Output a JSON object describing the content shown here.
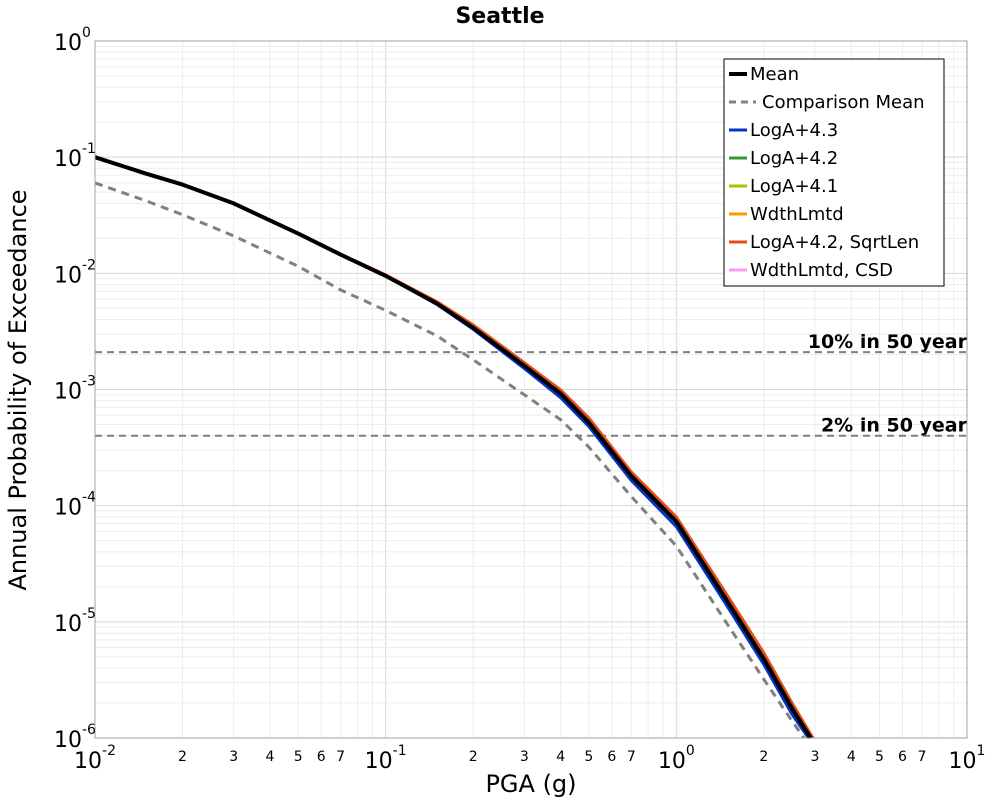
{
  "chart_data": {
    "type": "line",
    "title": "Seattle",
    "xlabel": "PGA (g)",
    "ylabel": "Annual Probability of Exceedance",
    "x_scale": "log",
    "y_scale": "log",
    "xlim": [
      0.01,
      10
    ],
    "ylim": [
      1e-06,
      1
    ],
    "grid": true,
    "legend_position": "top-right",
    "x_major_ticks": [
      {
        "value": 0.01,
        "base": "10",
        "exp": "-2"
      },
      {
        "value": 0.1,
        "base": "10",
        "exp": "-1"
      },
      {
        "value": 1,
        "base": "10",
        "exp": "0"
      },
      {
        "value": 10,
        "base": "10",
        "exp": "1"
      }
    ],
    "x_minor_ticks": [
      {
        "value": 0.02,
        "label": "2"
      },
      {
        "value": 0.03,
        "label": "3"
      },
      {
        "value": 0.04,
        "label": "4"
      },
      {
        "value": 0.05,
        "label": "5"
      },
      {
        "value": 0.06,
        "label": "6"
      },
      {
        "value": 0.07,
        "label": "7"
      },
      {
        "value": 0.2,
        "label": "2"
      },
      {
        "value": 0.3,
        "label": "3"
      },
      {
        "value": 0.4,
        "label": "4"
      },
      {
        "value": 0.5,
        "label": "5"
      },
      {
        "value": 0.6,
        "label": "6"
      },
      {
        "value": 0.7,
        "label": "7"
      },
      {
        "value": 2,
        "label": "2"
      },
      {
        "value": 3,
        "label": "3"
      },
      {
        "value": 4,
        "label": "4"
      },
      {
        "value": 5,
        "label": "5"
      },
      {
        "value": 6,
        "label": "6"
      },
      {
        "value": 7,
        "label": "7"
      }
    ],
    "y_major_ticks": [
      {
        "value": 1,
        "base": "10",
        "exp": "0"
      },
      {
        "value": 0.1,
        "base": "10",
        "exp": "-1"
      },
      {
        "value": 0.01,
        "base": "10",
        "exp": "-2"
      },
      {
        "value": 0.001,
        "base": "10",
        "exp": "-3"
      },
      {
        "value": 0.0001,
        "base": "10",
        "exp": "-4"
      },
      {
        "value": 1e-05,
        "base": "10",
        "exp": "-5"
      },
      {
        "value": 1e-06,
        "base": "10",
        "exp": "-6"
      }
    ],
    "reference_lines": [
      {
        "label": "10% in 50 year",
        "y": 0.0021,
        "color": "#808080"
      },
      {
        "label": "2% in 50 year",
        "y": 0.0004,
        "color": "#808080"
      }
    ],
    "series": [
      {
        "name": "Mean",
        "color": "#000000",
        "dash": "solid",
        "x": [
          0.01,
          0.015,
          0.02,
          0.03,
          0.05,
          0.07,
          0.1,
          0.15,
          0.2,
          0.3,
          0.4,
          0.5,
          0.7,
          1.0,
          1.5,
          2.0,
          2.5,
          2.9
        ],
        "y": [
          0.1,
          0.072,
          0.058,
          0.04,
          0.022,
          0.0145,
          0.0095,
          0.0055,
          0.0034,
          0.0016,
          0.00092,
          0.00052,
          0.00018,
          7.3e-05,
          1.5e-05,
          4.8e-06,
          1.8e-06,
          1e-06
        ]
      },
      {
        "name": "Comparison Mean",
        "color": "#808080",
        "dash": "dashed",
        "x": [
          0.01,
          0.015,
          0.02,
          0.03,
          0.05,
          0.07,
          0.1,
          0.15,
          0.2,
          0.3,
          0.4,
          0.5,
          0.7,
          1.0,
          1.5,
          2.0,
          2.5,
          2.75
        ],
        "y": [
          0.06,
          0.042,
          0.032,
          0.021,
          0.0115,
          0.0072,
          0.0048,
          0.0029,
          0.0018,
          0.0009,
          0.00055,
          0.00032,
          0.00012,
          4.5e-05,
          9.5e-06,
          3.2e-06,
          1.4e-06,
          1e-06
        ]
      },
      {
        "name": "LogA+4.3",
        "color": "#0033cc",
        "dash": "solid",
        "x": [
          0.01,
          0.015,
          0.02,
          0.03,
          0.05,
          0.07,
          0.1,
          0.15,
          0.2,
          0.3,
          0.4,
          0.5,
          0.7,
          1.0,
          1.5,
          2.0,
          2.5,
          2.85
        ],
        "y": [
          0.1,
          0.072,
          0.058,
          0.04,
          0.022,
          0.0145,
          0.0095,
          0.0054,
          0.0033,
          0.00152,
          0.00085,
          0.00048,
          0.000165,
          6.6e-05,
          1.35e-05,
          4.3e-06,
          1.6e-06,
          1e-06
        ]
      },
      {
        "name": "LogA+4.2",
        "color": "#339933",
        "dash": "solid",
        "x": [
          0.01,
          0.015,
          0.02,
          0.03,
          0.05,
          0.07,
          0.1,
          0.15,
          0.2,
          0.3,
          0.4,
          0.5,
          0.7,
          1.0,
          1.5,
          2.0,
          2.5,
          2.9
        ],
        "y": [
          0.1,
          0.072,
          0.058,
          0.04,
          0.022,
          0.0145,
          0.0095,
          0.0055,
          0.0034,
          0.0016,
          0.00092,
          0.00052,
          0.00018,
          7.3e-05,
          1.5e-05,
          4.8e-06,
          1.8e-06,
          1e-06
        ]
      },
      {
        "name": "LogA+4.1",
        "color": "#99cc00",
        "dash": "solid",
        "x": [
          0.01,
          0.015,
          0.02,
          0.03,
          0.05,
          0.07,
          0.1,
          0.15,
          0.2,
          0.3,
          0.4,
          0.5,
          0.7,
          1.0,
          1.5,
          2.0,
          2.5,
          2.95
        ],
        "y": [
          0.1,
          0.072,
          0.058,
          0.04,
          0.022,
          0.0145,
          0.0096,
          0.0056,
          0.0035,
          0.00165,
          0.00096,
          0.00055,
          0.00019,
          7.8e-05,
          1.62e-05,
          5.2e-06,
          1.9e-06,
          1e-06
        ]
      },
      {
        "name": "WdthLmtd",
        "color": "#ff9900",
        "dash": "solid",
        "x": [
          0.01,
          0.015,
          0.02,
          0.03,
          0.05,
          0.07,
          0.1,
          0.15,
          0.2,
          0.3,
          0.4,
          0.5,
          0.7,
          1.0,
          1.5,
          2.0,
          2.5,
          2.95
        ],
        "y": [
          0.1,
          0.072,
          0.058,
          0.04,
          0.022,
          0.0145,
          0.0096,
          0.0056,
          0.0035,
          0.00167,
          0.00097,
          0.00056,
          0.00019,
          7.9e-05,
          1.65e-05,
          5.3e-06,
          2e-06,
          1e-06
        ]
      },
      {
        "name": "LogA+4.2, SqrtLen",
        "color": "#e64d1a",
        "dash": "solid",
        "x": [
          0.01,
          0.015,
          0.02,
          0.03,
          0.05,
          0.07,
          0.1,
          0.15,
          0.2,
          0.3,
          0.4,
          0.5,
          0.7,
          1.0,
          1.5,
          2.0,
          2.5,
          2.95
        ],
        "y": [
          0.1,
          0.072,
          0.058,
          0.04,
          0.022,
          0.0146,
          0.0097,
          0.0057,
          0.0036,
          0.0017,
          0.00099,
          0.00057,
          0.000195,
          8e-05,
          1.68e-05,
          5.4e-06,
          2e-06,
          1e-06
        ]
      },
      {
        "name": "WdthLmtd, CSD",
        "color": "#ff99ee",
        "dash": "solid",
        "x": [
          0.01,
          0.015,
          0.02,
          0.03,
          0.05,
          0.07,
          0.1,
          0.15,
          0.2,
          0.3,
          0.4,
          0.5,
          0.7,
          1.0,
          1.5,
          2.0,
          2.5,
          2.9
        ],
        "y": [
          0.1,
          0.072,
          0.058,
          0.04,
          0.022,
          0.0145,
          0.0095,
          0.0055,
          0.0034,
          0.0016,
          0.00092,
          0.00052,
          0.00018,
          7.3e-05,
          1.5e-05,
          4.8e-06,
          1.8e-06,
          1e-06
        ]
      }
    ],
    "draw_order": [
      "Comparison Mean",
      "LogA+4.3",
      "LogA+4.2",
      "LogA+4.1",
      "WdthLmtd, CSD",
      "WdthLmtd",
      "LogA+4.2, SqrtLen",
      "Mean"
    ]
  }
}
